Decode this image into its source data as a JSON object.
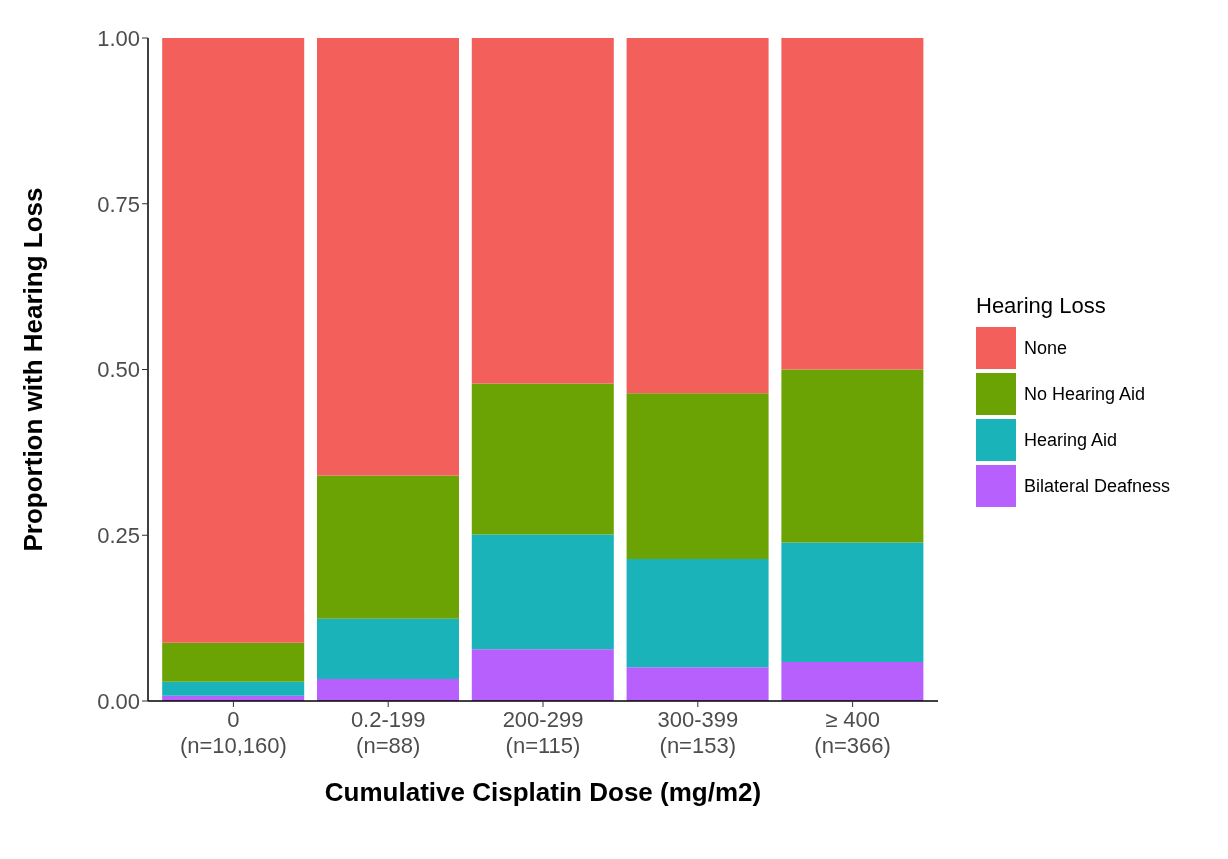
{
  "chart_data": {
    "type": "bar",
    "stacked": true,
    "xlabel": "Cumulative Cisplatin Dose (mg/m2)",
    "ylabel": "Proportion with Hearing Loss",
    "legend_title": "Hearing Loss",
    "categories": [
      "0\n(n=10,160)",
      "0.2-199\n(n=88)",
      "200-299\n(n=115)",
      "300-399\n(n=153)",
      "≥ 400\n(n=366)"
    ],
    "series": [
      {
        "name": "Bilateral Deafness",
        "color": "#b760fe",
        "values": [
          0.008,
          0.033,
          0.078,
          0.051,
          0.059
        ]
      },
      {
        "name": "Hearing Aid",
        "color": "#1ab3b9",
        "values": [
          0.021,
          0.091,
          0.173,
          0.163,
          0.18
        ]
      },
      {
        "name": "No Hearing Aid",
        "color": "#6ba204",
        "values": [
          0.059,
          0.216,
          0.228,
          0.25,
          0.261
        ]
      },
      {
        "name": "None",
        "color": "#f35f5b",
        "values": [
          0.912,
          0.66,
          0.521,
          0.536,
          0.5
        ]
      }
    ],
    "ylim": [
      0,
      1
    ],
    "yticks": [
      {
        "value": 0,
        "label": "0.00"
      },
      {
        "value": 0.25,
        "label": "0.25"
      },
      {
        "value": 0.5,
        "label": "0.50"
      },
      {
        "value": 0.75,
        "label": "0.75"
      },
      {
        "value": 1,
        "label": "1.00"
      }
    ],
    "grid": false,
    "legend": "right"
  }
}
